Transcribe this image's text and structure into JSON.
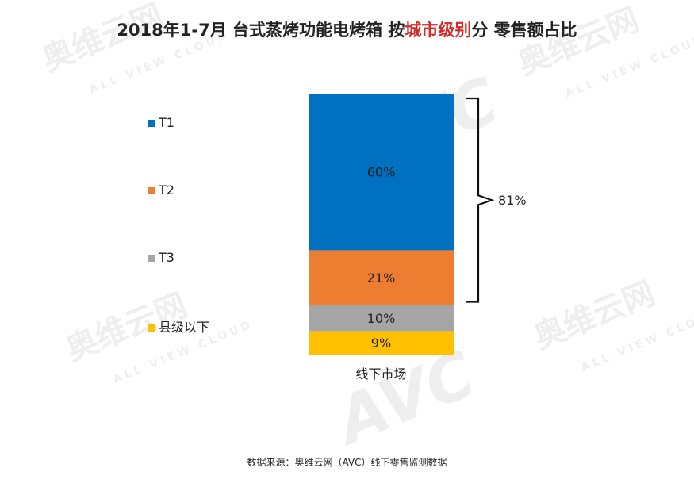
{
  "title": {
    "part1": "2018年1-7月 台式蒸烤功能电烤箱 按",
    "highlight": "城市级别",
    "part2": "分 零售额占比"
  },
  "watermark": {
    "cn": "奥维云网",
    "en": "ALL VIEW CLOUD",
    "logo": "AVC"
  },
  "colors": {
    "T1": "#0070c0",
    "T2": "#ed7d31",
    "T3": "#a5a5a5",
    "county": "#ffc000",
    "highlight": "#d42a2a"
  },
  "chart_data": {
    "type": "bar",
    "stacked": true,
    "categories": [
      "线下市场"
    ],
    "series": [
      {
        "name": "县级以下",
        "values": [
          9
        ],
        "label": "9%"
      },
      {
        "name": "T3",
        "values": [
          10
        ],
        "label": "10%"
      },
      {
        "name": "T2",
        "values": [
          21
        ],
        "label": "21%"
      },
      {
        "name": "T1",
        "values": [
          60
        ],
        "label": "60%"
      }
    ],
    "legend": [
      "T1",
      "T2",
      "T3",
      "县级以下"
    ],
    "legend_position": "left",
    "annotation": {
      "text": "81%",
      "spans": [
        "T1",
        "T2"
      ]
    },
    "ylim": [
      0,
      100
    ],
    "grid": false
  },
  "source": "数据来源：奥维云网（AVC）线下零售监测数据"
}
